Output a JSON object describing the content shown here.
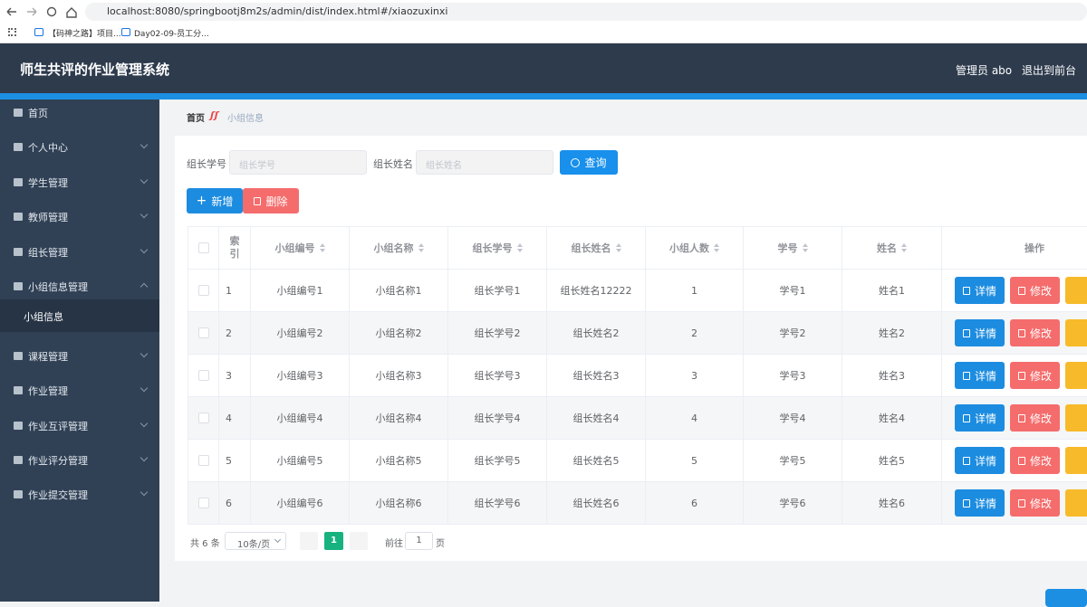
{
  "browser": {
    "url": "localhost:8080/springbootj8m2s/admin/dist/index.html#/xiaozuxinxi",
    "bookmarks": [
      "【码神之路】项目...",
      "Day02-09-员工分..."
    ]
  },
  "header": {
    "title": "师生共评的作业管理系统",
    "user": "管理员 abo",
    "logout": "退出到前台"
  },
  "sidebar": {
    "items": [
      {
        "label": "首页"
      },
      {
        "label": "个人中心"
      },
      {
        "label": "学生管理"
      },
      {
        "label": "教师管理"
      },
      {
        "label": "组长管理"
      },
      {
        "label": "小组信息管理",
        "children": [
          "小组信息"
        ]
      },
      {
        "label": "课程管理"
      },
      {
        "label": "作业管理"
      },
      {
        "label": "作业互评管理"
      },
      {
        "label": "作业评分管理"
      },
      {
        "label": "作业提交管理"
      }
    ]
  },
  "breadcrumb": [
    "首页",
    "小组信息"
  ],
  "search": {
    "fields": [
      {
        "label": "组长学号",
        "placeholder": "组长学号"
      },
      {
        "label": "组长姓名",
        "placeholder": "组长姓名"
      }
    ],
    "button": "查询"
  },
  "actions": [
    "新增",
    "删除"
  ],
  "table": {
    "columns": [
      "索引",
      "小组编号",
      "小组名称",
      "组长学号",
      "组长姓名",
      "小组人数",
      "学号",
      "姓名"
    ],
    "action_header": "操作",
    "rows": [
      [
        "1",
        "小组编号1",
        "小组名称1",
        "组长学号1",
        "组长姓名12222",
        "1",
        "学号1",
        "姓名1"
      ],
      [
        "2",
        "小组编号2",
        "小组名称2",
        "组长学号2",
        "组长姓名2",
        "2",
        "学号2",
        "姓名2"
      ],
      [
        "3",
        "小组编号3",
        "小组名称3",
        "组长学号3",
        "组长姓名3",
        "3",
        "学号3",
        "姓名3"
      ],
      [
        "4",
        "小组编号4",
        "小组名称4",
        "组长学号4",
        "组长姓名4",
        "4",
        "学号4",
        "姓名4"
      ],
      [
        "5",
        "小组编号5",
        "小组名称5",
        "组长学号5",
        "组长姓名5",
        "5",
        "学号5",
        "姓名5"
      ],
      [
        "6",
        "小组编号6",
        "小组名称6",
        "组长学号6",
        "组长姓名6",
        "6",
        "学号6",
        "姓名6"
      ]
    ],
    "row_actions": [
      "详情",
      "修改"
    ]
  },
  "pagination": {
    "total": "共 6 条",
    "page_size": "10条/页",
    "current": "1",
    "goto": "前往",
    "goto_value": "1",
    "page_unit": "页"
  }
}
